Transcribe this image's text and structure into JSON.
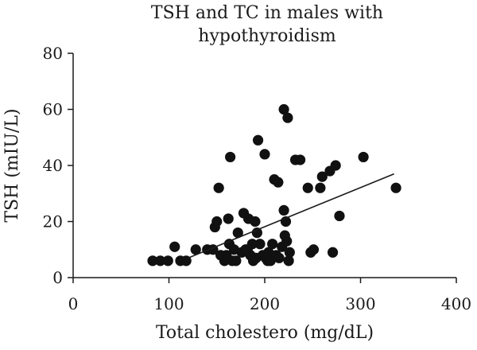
{
  "chart_data": {
    "type": "scatter",
    "title_lines": [
      "TSH and TC in males with",
      "hypothyroidism"
    ],
    "xlabel": "Total cholestero (mg/dL)",
    "ylabel": "TSH (mIU/L)",
    "xlim": [
      0,
      400
    ],
    "ylim": [
      0,
      80
    ],
    "xticks": [
      0,
      100,
      200,
      300,
      400
    ],
    "yticks": [
      0,
      20,
      40,
      60,
      80
    ],
    "grid": false,
    "legend": "none",
    "trendline": {
      "x": [
        120,
        335
      ],
      "y": [
        7,
        37
      ]
    },
    "points": [
      {
        "x": 83,
        "y": 6
      },
      {
        "x": 91,
        "y": 6
      },
      {
        "x": 99,
        "y": 6
      },
      {
        "x": 106,
        "y": 11
      },
      {
        "x": 112,
        "y": 6
      },
      {
        "x": 118,
        "y": 6
      },
      {
        "x": 128,
        "y": 10
      },
      {
        "x": 140,
        "y": 10
      },
      {
        "x": 146,
        "y": 10
      },
      {
        "x": 148,
        "y": 18
      },
      {
        "x": 150,
        "y": 20
      },
      {
        "x": 152,
        "y": 32
      },
      {
        "x": 154,
        "y": 8
      },
      {
        "x": 158,
        "y": 6
      },
      {
        "x": 160,
        "y": 8
      },
      {
        "x": 162,
        "y": 21
      },
      {
        "x": 163,
        "y": 12
      },
      {
        "x": 164,
        "y": 43
      },
      {
        "x": 166,
        "y": 6
      },
      {
        "x": 168,
        "y": 10
      },
      {
        "x": 170,
        "y": 6
      },
      {
        "x": 172,
        "y": 16
      },
      {
        "x": 176,
        "y": 9
      },
      {
        "x": 178,
        "y": 23
      },
      {
        "x": 180,
        "y": 10
      },
      {
        "x": 182,
        "y": 10
      },
      {
        "x": 183,
        "y": 21
      },
      {
        "x": 185,
        "y": 8
      },
      {
        "x": 187,
        "y": 12
      },
      {
        "x": 188,
        "y": 6
      },
      {
        "x": 190,
        "y": 20
      },
      {
        "x": 191,
        "y": 7
      },
      {
        "x": 192,
        "y": 16
      },
      {
        "x": 193,
        "y": 49
      },
      {
        "x": 195,
        "y": 12
      },
      {
        "x": 198,
        "y": 8
      },
      {
        "x": 200,
        "y": 44
      },
      {
        "x": 201,
        "y": 7
      },
      {
        "x": 203,
        "y": 6
      },
      {
        "x": 204,
        "y": 9
      },
      {
        "x": 206,
        "y": 6
      },
      {
        "x": 208,
        "y": 12
      },
      {
        "x": 210,
        "y": 35
      },
      {
        "x": 212,
        "y": 8
      },
      {
        "x": 214,
        "y": 34
      },
      {
        "x": 215,
        "y": 7
      },
      {
        "x": 218,
        "y": 11
      },
      {
        "x": 220,
        "y": 60
      },
      {
        "x": 220,
        "y": 24
      },
      {
        "x": 221,
        "y": 15
      },
      {
        "x": 222,
        "y": 20
      },
      {
        "x": 223,
        "y": 13
      },
      {
        "x": 224,
        "y": 57
      },
      {
        "x": 225,
        "y": 6
      },
      {
        "x": 226,
        "y": 9
      },
      {
        "x": 232,
        "y": 42
      },
      {
        "x": 237,
        "y": 42
      },
      {
        "x": 245,
        "y": 32
      },
      {
        "x": 248,
        "y": 9
      },
      {
        "x": 251,
        "y": 10
      },
      {
        "x": 258,
        "y": 32
      },
      {
        "x": 260,
        "y": 36
      },
      {
        "x": 268,
        "y": 38
      },
      {
        "x": 271,
        "y": 9
      },
      {
        "x": 274,
        "y": 40
      },
      {
        "x": 278,
        "y": 22
      },
      {
        "x": 303,
        "y": 43
      },
      {
        "x": 337,
        "y": 32
      }
    ]
  }
}
